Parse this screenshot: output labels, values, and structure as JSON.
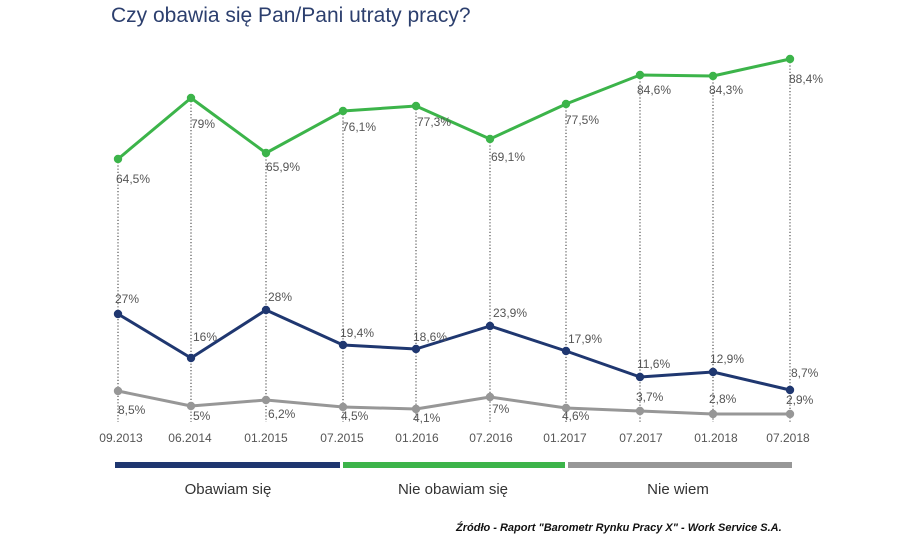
{
  "title": "Czy obawia się Pan/Pani utraty pracy?",
  "source": "Źródło - Raport \"Barometr Rynku Pracy X\" - Work Service S.A.",
  "colors": {
    "obawiam": "#1f3770",
    "nie_obawiam": "#3cb44a",
    "nie_wiem": "#979797"
  },
  "chart_data": {
    "type": "line",
    "title": "Czy obawia się Pan/Pani utraty pracy?",
    "categories": [
      "09.2013",
      "06.2014",
      "01.2015",
      "07.2015",
      "01.2016",
      "07.2016",
      "01.2017",
      "07.2017",
      "01.2018",
      "07.2018"
    ],
    "series": [
      {
        "key": "nie_obawiam",
        "name": "Nie obawiam się",
        "values": [
          64.5,
          79,
          65.9,
          76.1,
          77.3,
          69.1,
          77.5,
          84.6,
          84.3,
          88.4
        ],
        "labels": [
          "64,5%",
          "79%",
          "65,9%",
          "76,1%",
          "77,3%",
          "69,1%",
          "77,5%",
          "84,6%",
          "84,3%",
          "88,4%"
        ]
      },
      {
        "key": "obawiam",
        "name": "Obawiam się",
        "values": [
          27,
          16,
          28,
          19.4,
          18.6,
          23.9,
          17.9,
          11.6,
          12.9,
          8.7
        ],
        "labels": [
          "27%",
          "16%",
          "28%",
          "19,4%",
          "18,6%",
          "23,9%",
          "17,9%",
          "11,6%",
          "12,9%",
          "8,7%"
        ]
      },
      {
        "key": "nie_wiem",
        "name": "Nie wiem",
        "values": [
          8.5,
          5,
          6.2,
          4.5,
          4.1,
          7,
          4.6,
          3.7,
          2.8,
          2.9
        ],
        "labels": [
          "8,5%",
          "5%",
          "6,2%",
          "4,5%",
          "4,1%",
          "7%",
          "4,6%",
          "3,7%",
          "2,8%",
          "2,9%"
        ]
      }
    ],
    "legend": [
      "Obawiam się",
      "Nie obawiam się",
      "Nie wiem"
    ],
    "legend_position": "bottom",
    "xlabel": "",
    "ylabel": ""
  }
}
